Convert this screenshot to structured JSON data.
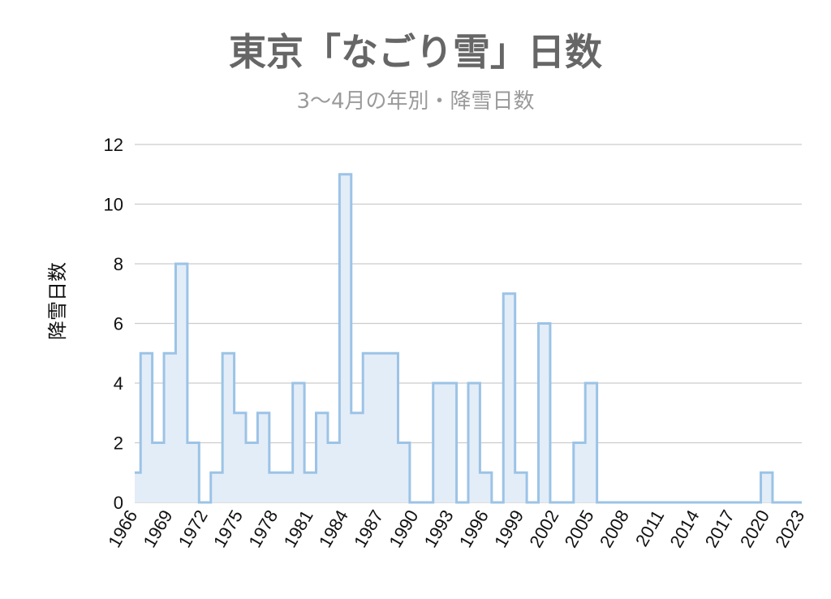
{
  "chart_data": {
    "type": "area",
    "title": "東京「なごり雪」日数",
    "subtitle": "3〜4月の年別・降雪日数",
    "ylabel": "降雪日数",
    "xlabel": "",
    "ylim": [
      0,
      12
    ],
    "yticks": [
      0,
      2,
      4,
      6,
      8,
      10,
      12
    ],
    "xticks": [
      "1966",
      "1969",
      "1972",
      "1975",
      "1978",
      "1981",
      "1984",
      "1987",
      "1990",
      "1993",
      "1996",
      "1999",
      "2002",
      "2005",
      "2008",
      "2011",
      "2014",
      "2017",
      "2020",
      "2023"
    ],
    "grid": true,
    "step": true,
    "colors": {
      "line": "#9cc3e6",
      "fill": "#e3edf8",
      "grid": "#cccccc"
    },
    "x": [
      1966,
      1967,
      1968,
      1969,
      1970,
      1971,
      1972,
      1973,
      1974,
      1975,
      1976,
      1977,
      1978,
      1979,
      1980,
      1981,
      1982,
      1983,
      1984,
      1985,
      1986,
      1987,
      1988,
      1989,
      1990,
      1991,
      1992,
      1993,
      1994,
      1995,
      1996,
      1997,
      1998,
      1999,
      2000,
      2001,
      2002,
      2003,
      2004,
      2005,
      2006,
      2007,
      2008,
      2009,
      2010,
      2011,
      2012,
      2013,
      2014,
      2015,
      2016,
      2017,
      2018,
      2019,
      2020,
      2021,
      2022,
      2023
    ],
    "values": [
      1,
      5,
      2,
      5,
      8,
      2,
      0,
      1,
      5,
      3,
      2,
      3,
      1,
      1,
      4,
      1,
      3,
      2,
      11,
      3,
      5,
      5,
      5,
      2,
      0,
      0,
      4,
      4,
      0,
      4,
      1,
      0,
      7,
      1,
      0,
      6,
      0,
      0,
      2,
      4,
      0,
      0,
      0,
      0,
      0,
      0,
      0,
      0,
      0,
      0,
      0,
      0,
      0,
      0,
      1,
      0,
      0,
      0
    ]
  }
}
